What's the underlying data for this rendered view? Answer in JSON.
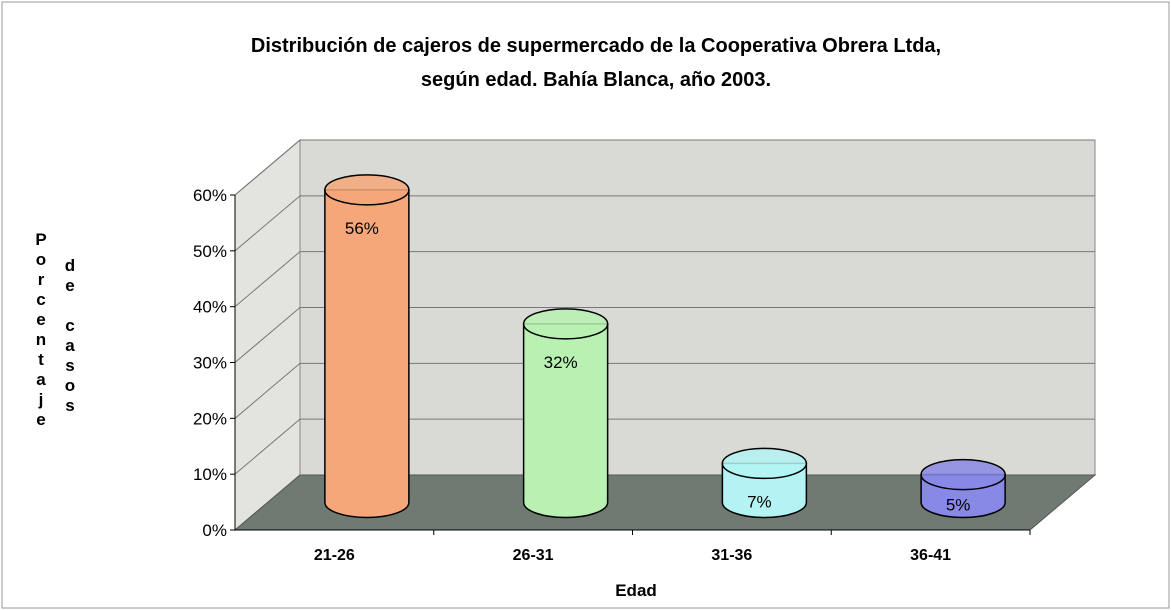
{
  "chart_data": {
    "type": "bar3d",
    "title": [
      "Distribución de cajeros de supermercado de la Cooperativa Obrera Ltda,",
      "según edad. Bahía Blanca, año 2003."
    ],
    "ylabel": [
      "Porcentaje",
      "de casos"
    ],
    "xlabel": "Edad",
    "categories": [
      "21-26",
      "26-31",
      "31-36",
      "36-41"
    ],
    "values": [
      56,
      32,
      7,
      5
    ],
    "value_labels": [
      "56%",
      "32%",
      "7%",
      "5%"
    ],
    "colors": [
      "#f5a77a",
      "#b9f1b3",
      "#b3f3f3",
      "#8888e6"
    ],
    "ylim": [
      0,
      60
    ],
    "yticks": [
      {
        "value": 0,
        "label": "0%"
      },
      {
        "value": 10,
        "label": "10%"
      },
      {
        "value": 20,
        "label": "20%"
      },
      {
        "value": 30,
        "label": "30%"
      },
      {
        "value": 40,
        "label": "40%"
      },
      {
        "value": 50,
        "label": "50%"
      },
      {
        "value": 60,
        "label": "60%"
      }
    ],
    "grid": true
  }
}
